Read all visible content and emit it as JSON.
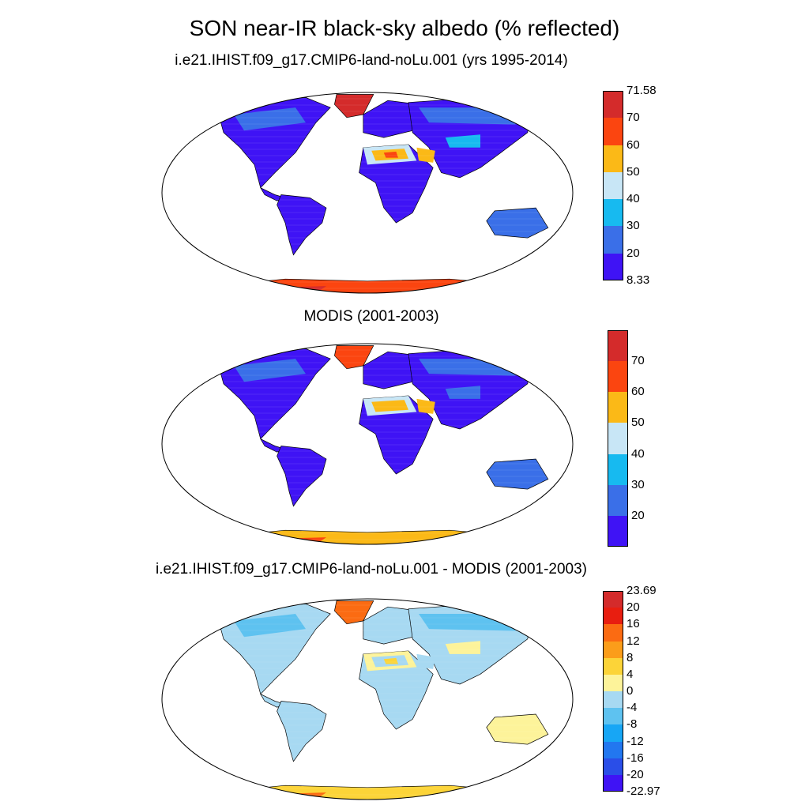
{
  "figure": {
    "title": "SON near-IR black-sky albedo (% reflected)"
  },
  "panels": [
    {
      "id": "model",
      "title": "i.e21.IHIST.f09_g17.CMIP6-land-noLu.001 (yrs 1995-2014)",
      "colorbar": {
        "colors": [
          "#3f13f5",
          "#3a6fe8",
          "#17baf0",
          "#c8e6f6",
          "#fbb917",
          "#fb4510",
          "#d42b2b"
        ],
        "labels": [
          "8.33",
          "20",
          "30",
          "40",
          "50",
          "60",
          "70",
          "71.58"
        ],
        "min_label": "8.33",
        "max_label": "71.58"
      },
      "palette": {
        "land_default": "#3f13f5",
        "boreal": "#3a6fe8",
        "desert_light": "#c8e6f6",
        "desert_mid": "#fbb917",
        "desert_hot": "#fb4510",
        "ice": "#fb4510",
        "ice_edge": "#d42b2b",
        "australia": "#3a6fe8",
        "arabia": "#fbb917",
        "tibet": "#17baf0"
      }
    },
    {
      "id": "modis",
      "title": "MODIS (2001-2003)",
      "colorbar": {
        "colors": [
          "#3f13f5",
          "#3a6fe8",
          "#17baf0",
          "#c8e6f6",
          "#fbb917",
          "#fb4510",
          "#d42b2b"
        ],
        "labels": [
          "20",
          "30",
          "40",
          "50",
          "60",
          "70"
        ],
        "min_label": "",
        "max_label": ""
      },
      "palette": {
        "land_default": "#3f13f5",
        "boreal": "#3a6fe8",
        "desert_light": "#c8e6f6",
        "desert_mid": "#fbb917",
        "desert_hot": "#fbb917",
        "ice": "#fbb917",
        "ice_edge": "#fb4510",
        "australia": "#3a6fe8",
        "arabia": "#fbb917",
        "tibet": "#3a6fe8"
      }
    },
    {
      "id": "diff",
      "title": "i.e21.IHIST.f09_g17.CMIP6-land-noLu.001 - MODIS (2001-2003)",
      "colorbar": {
        "colors": [
          "#3f13f5",
          "#2a4ee8",
          "#2277f0",
          "#17a6f5",
          "#5ec2f0",
          "#a7d9f2",
          "#fdf39a",
          "#fcd438",
          "#fb9d1a",
          "#fb6b12",
          "#e81e10",
          "#d42b2b"
        ],
        "labels": [
          "-22.97",
          "-20",
          "-16",
          "-12",
          "-8",
          "-4",
          "0",
          "4",
          "8",
          "12",
          "16",
          "20",
          "23.69"
        ],
        "min_label": "-22.97",
        "max_label": "23.69"
      },
      "palette": {
        "land_default": "#a7d9f2",
        "boreal": "#5ec2f0",
        "desert_light": "#fdf39a",
        "desert_mid": "#a7d9f2",
        "desert_hot": "#fcd438",
        "ice": "#fcd438",
        "ice_edge": "#fb6b12",
        "australia": "#fdf39a",
        "arabia": "#a7d9f2",
        "tibet": "#fdf39a"
      }
    }
  ]
}
